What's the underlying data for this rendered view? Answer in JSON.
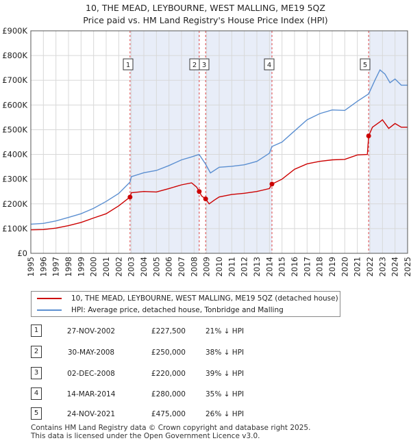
{
  "title_line1": "10, THE MEAD, LEYBOURNE, WEST MALLING, ME19 5QZ",
  "title_line2": "Price paid vs. HM Land Registry's House Price Index (HPI)",
  "colors": {
    "property": "#cc0000",
    "hpi": "#5b8fd1",
    "shade": "#e8edf8",
    "vline": "#dd4444"
  },
  "legend": {
    "property": "10, THE MEAD, LEYBOURNE, WEST MALLING, ME19 5QZ (detached house)",
    "hpi": "HPI: Average price, detached house, Tonbridge and Malling"
  },
  "transactions": [
    {
      "id": "1",
      "date": "27-NOV-2002",
      "price": "£227,500",
      "hpi": "21% ↓ HPI"
    },
    {
      "id": "2",
      "date": "30-MAY-2008",
      "price": "£250,000",
      "hpi": "38% ↓ HPI"
    },
    {
      "id": "3",
      "date": "02-DEC-2008",
      "price": "£220,000",
      "hpi": "39% ↓ HPI"
    },
    {
      "id": "4",
      "date": "14-MAR-2014",
      "price": "£280,000",
      "hpi": "35% ↓ HPI"
    },
    {
      "id": "5",
      "date": "24-NOV-2021",
      "price": "£475,000",
      "hpi": "26% ↓ HPI"
    }
  ],
  "footer_line1": "Contains HM Land Registry data © Crown copyright and database right 2025.",
  "footer_line2": "This data is licensed under the Open Government Licence v3.0.",
  "chart_data": {
    "type": "line",
    "title": "10, THE MEAD, LEYBOURNE, WEST MALLING, ME19 5QZ",
    "subtitle": "Price paid vs. HM Land Registry's House Price Index (HPI)",
    "xlabel": "",
    "ylabel": "",
    "xlim": [
      1995,
      2025
    ],
    "ylim": [
      0,
      900000
    ],
    "yticks": [
      0,
      100000,
      200000,
      300000,
      400000,
      500000,
      600000,
      700000,
      800000,
      900000
    ],
    "ytick_labels": [
      "£0",
      "£100K",
      "£200K",
      "£300K",
      "£400K",
      "£500K",
      "£600K",
      "£700K",
      "£800K",
      "£900K"
    ],
    "xticks": [
      1995,
      1996,
      1997,
      1998,
      1999,
      2000,
      2001,
      2002,
      2003,
      2004,
      2005,
      2006,
      2007,
      2008,
      2009,
      2010,
      2011,
      2012,
      2013,
      2014,
      2015,
      2016,
      2017,
      2018,
      2019,
      2020,
      2021,
      2022,
      2023,
      2024,
      2025
    ],
    "grid": true,
    "shaded_ranges": [
      [
        2002.9,
        2008.42
      ],
      [
        2008.92,
        2014.2
      ],
      [
        2021.9,
        2025
      ]
    ],
    "markers": [
      {
        "label": "1",
        "x": 2002.9,
        "y": 227500
      },
      {
        "label": "2",
        "x": 2008.41,
        "y": 250000
      },
      {
        "label": "3",
        "x": 2008.92,
        "y": 220000
      },
      {
        "label": "4",
        "x": 2014.2,
        "y": 280000
      },
      {
        "label": "5",
        "x": 2021.9,
        "y": 475000
      }
    ],
    "series": [
      {
        "name": "10, THE MEAD, LEYBOURNE, WEST MALLING, ME19 5QZ (detached house)",
        "x": [
          1995,
          1996,
          1997,
          1998,
          1999,
          2000,
          2001,
          2002,
          2002.9,
          2003,
          2004,
          2005,
          2006,
          2007,
          2007.8,
          2008.2,
          2008.41,
          2008.6,
          2008.92,
          2009.2,
          2009.6,
          2010,
          2011,
          2012,
          2013,
          2014,
          2014.2,
          2015,
          2016,
          2017,
          2018,
          2019,
          2020,
          2021,
          2021.8,
          2021.9,
          2022.2,
          2022.8,
          2023,
          2023.5,
          2024,
          2024.5,
          2025
        ],
        "values": [
          95000,
          96000,
          102000,
          112000,
          125000,
          143000,
          160000,
          192000,
          227500,
          245000,
          250000,
          248000,
          262000,
          277000,
          285000,
          268000,
          250000,
          232000,
          220000,
          200000,
          215000,
          228000,
          238000,
          243000,
          250000,
          262000,
          280000,
          300000,
          340000,
          362000,
          372000,
          378000,
          380000,
          398000,
          400000,
          475000,
          510000,
          532000,
          540000,
          505000,
          525000,
          510000,
          510000
        ]
      },
      {
        "name": "HPI: Average price, detached house, Tonbridge and Malling",
        "x": [
          1995,
          1996,
          1997,
          1998,
          1999,
          2000,
          2001,
          2002,
          2002.9,
          2003,
          2004,
          2005,
          2006,
          2007,
          2007.8,
          2008.4,
          2008.9,
          2009.3,
          2010,
          2011,
          2012,
          2013,
          2014,
          2014.2,
          2015,
          2016,
          2017,
          2018,
          2019,
          2020,
          2021,
          2021.9,
          2022.4,
          2022.8,
          2023.2,
          2023.6,
          2024,
          2024.5,
          2025
        ],
        "values": [
          118000,
          121000,
          131000,
          145000,
          160000,
          182000,
          210000,
          242000,
          288000,
          310000,
          326000,
          335000,
          355000,
          378000,
          390000,
          400000,
          362000,
          325000,
          348000,
          352000,
          358000,
          372000,
          405000,
          432000,
          450000,
          495000,
          540000,
          565000,
          580000,
          578000,
          615000,
          645000,
          700000,
          742000,
          725000,
          690000,
          705000,
          680000,
          680000
        ]
      }
    ]
  }
}
